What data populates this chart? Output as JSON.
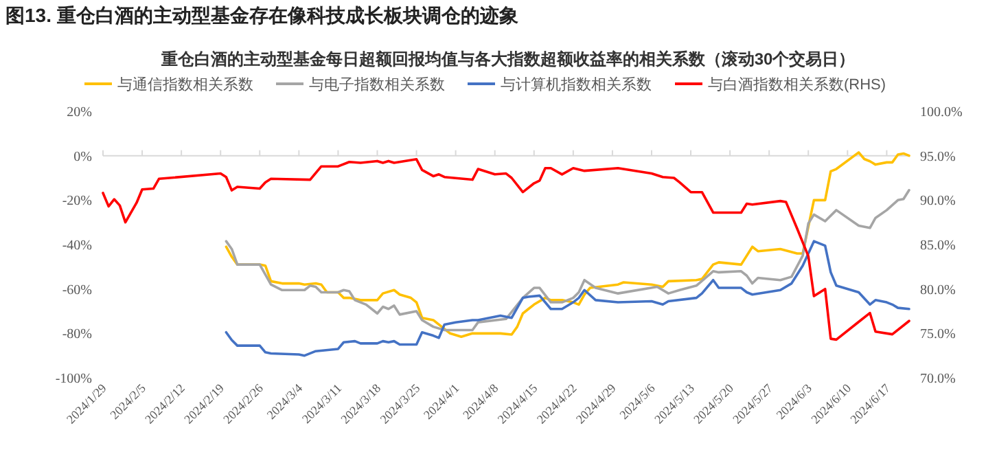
{
  "chart_data": {
    "type": "line",
    "title": "图13. 重仓白酒的主动型基金存在像科技成长板块调仓的迹象",
    "subtitle": "重仓白酒的主动型基金每日超额回报均值与各大指数超额收益率的相关系数（滚动30个交易日）",
    "xlim": [
      "2024-01-29",
      "2024-06-21"
    ],
    "xticks": [
      {
        "value": "2024-01-29",
        "label": "2024/1/29"
      },
      {
        "value": "2024-02-05",
        "label": "2024/2/5"
      },
      {
        "value": "2024-02-12",
        "label": "2024/2/12"
      },
      {
        "value": "2024-02-19",
        "label": "2024/2/19"
      },
      {
        "value": "2024-02-26",
        "label": "2024/2/26"
      },
      {
        "value": "2024-03-04",
        "label": "2024/3/4"
      },
      {
        "value": "2024-03-11",
        "label": "2024/3/11"
      },
      {
        "value": "2024-03-18",
        "label": "2024/3/18"
      },
      {
        "value": "2024-03-25",
        "label": "2024/3/25"
      },
      {
        "value": "2024-04-01",
        "label": "2024/4/1"
      },
      {
        "value": "2024-04-08",
        "label": "2024/4/8"
      },
      {
        "value": "2024-04-15",
        "label": "2024/4/15"
      },
      {
        "value": "2024-04-22",
        "label": "2024/4/22"
      },
      {
        "value": "2024-04-29",
        "label": "2024/4/29"
      },
      {
        "value": "2024-05-06",
        "label": "2024/5/6"
      },
      {
        "value": "2024-05-13",
        "label": "2024/5/13"
      },
      {
        "value": "2024-05-20",
        "label": "2024/5/20"
      },
      {
        "value": "2024-05-27",
        "label": "2024/5/27"
      },
      {
        "value": "2024-06-03",
        "label": "2024/6/3"
      },
      {
        "value": "2024-06-10",
        "label": "2024/6/10"
      },
      {
        "value": "2024-06-17",
        "label": "2024/6/17"
      }
    ],
    "ylim": [
      -100,
      20
    ],
    "yticks": [
      {
        "value": -100,
        "label": "-100%"
      },
      {
        "value": -80,
        "label": "-80%"
      },
      {
        "value": -60,
        "label": "-60%"
      },
      {
        "value": -40,
        "label": "-40%"
      },
      {
        "value": -20,
        "label": "-20%"
      },
      {
        "value": 0,
        "label": "0%"
      },
      {
        "value": 20,
        "label": "20%"
      }
    ],
    "y2lim": [
      70,
      100
    ],
    "y2ticks": [
      {
        "value": 70,
        "label": "70.0%"
      },
      {
        "value": 75,
        "label": "75.0%"
      },
      {
        "value": 80,
        "label": "80.0%"
      },
      {
        "value": 85,
        "label": "85.0%"
      },
      {
        "value": 90,
        "label": "90.0%"
      },
      {
        "value": 95,
        "label": "95.0%"
      },
      {
        "value": 100,
        "label": "100.0%"
      }
    ],
    "legend": "top",
    "ref_lines": [
      {
        "axis": "y",
        "value": 0,
        "color": "#d9d9d9"
      }
    ],
    "series": [
      {
        "name": "与通信指数相关系数",
        "color": "#ffc000",
        "x": [
          "2024-02-20",
          "2024-02-21",
          "2024-02-22",
          "2024-02-26",
          "2024-02-27",
          "2024-02-28",
          "2024-03-01",
          "2024-03-04",
          "2024-03-05",
          "2024-03-07",
          "2024-03-08",
          "2024-03-09",
          "2024-03-11",
          "2024-03-12",
          "2024-03-13",
          "2024-03-15",
          "2024-03-18",
          "2024-03-19",
          "2024-03-21",
          "2024-03-22",
          "2024-03-24",
          "2024-03-25",
          "2024-03-26",
          "2024-03-28",
          "2024-03-30",
          "2024-03-31",
          "2024-04-02",
          "2024-04-04",
          "2024-04-05",
          "2024-04-09",
          "2024-04-11",
          "2024-04-12",
          "2024-04-13",
          "2024-04-14",
          "2024-04-15",
          "2024-04-17",
          "2024-04-18",
          "2024-04-20",
          "2024-04-22",
          "2024-04-23",
          "2024-04-24",
          "2024-04-25",
          "2024-04-30",
          "2024-05-01",
          "2024-05-06",
          "2024-05-08",
          "2024-05-09",
          "2024-05-14",
          "2024-05-15",
          "2024-05-17",
          "2024-05-18",
          "2024-05-22",
          "2024-05-24",
          "2024-05-25",
          "2024-05-29",
          "2024-06-01",
          "2024-06-02",
          "2024-06-04",
          "2024-06-06",
          "2024-06-07",
          "2024-06-08",
          "2024-06-12",
          "2024-06-13",
          "2024-06-14",
          "2024-06-15",
          "2024-06-17",
          "2024-06-18",
          "2024-06-19",
          "2024-06-20",
          "2024-06-21"
        ],
        "values": [
          -41,
          -45.5,
          -49,
          -49,
          -49.5,
          -56.5,
          -57.5,
          -57.5,
          -58,
          -57.5,
          -58,
          -61.5,
          -61.5,
          -64,
          -64,
          -65,
          -65,
          -62,
          -60.5,
          -62.5,
          -64,
          -66,
          -73,
          -74,
          -78,
          -80,
          -81.5,
          -80,
          -80,
          -80,
          -80.5,
          -77,
          -71,
          -69,
          -67,
          -64,
          -65,
          -65,
          -66,
          -67,
          -62.5,
          -59.5,
          -58,
          -57,
          -58,
          -59,
          -56.5,
          -56,
          -55.5,
          -49,
          -48,
          -49,
          -41,
          -43,
          -42,
          -44,
          -44,
          -20,
          -20,
          -7,
          -6,
          1.5,
          -1.5,
          -2.5,
          -4,
          -3,
          -3,
          0.5,
          1,
          0
        ],
        "axis": "y"
      },
      {
        "name": "与电子指数相关系数",
        "color": "#a5a5a5",
        "x": [
          "2024-02-20",
          "2024-02-21",
          "2024-02-22",
          "2024-02-26",
          "2024-02-27",
          "2024-02-28",
          "2024-03-01",
          "2024-03-05",
          "2024-03-06",
          "2024-03-07",
          "2024-03-08",
          "2024-03-11",
          "2024-03-12",
          "2024-03-13",
          "2024-03-14",
          "2024-03-16",
          "2024-03-18",
          "2024-03-19",
          "2024-03-20",
          "2024-03-21",
          "2024-03-22",
          "2024-03-25",
          "2024-03-26",
          "2024-03-28",
          "2024-03-30",
          "2024-04-04",
          "2024-04-05",
          "2024-04-10",
          "2024-04-13",
          "2024-04-15",
          "2024-04-16",
          "2024-04-18",
          "2024-04-20",
          "2024-04-22",
          "2024-04-23",
          "2024-04-24",
          "2024-04-26",
          "2024-04-30",
          "2024-05-07",
          "2024-05-09",
          "2024-05-11",
          "2024-05-14",
          "2024-05-17",
          "2024-05-18",
          "2024-05-22",
          "2024-05-23",
          "2024-05-24",
          "2024-05-25",
          "2024-05-29",
          "2024-05-31",
          "2024-06-02",
          "2024-06-03",
          "2024-06-04",
          "2024-06-06",
          "2024-06-08",
          "2024-06-12",
          "2024-06-14",
          "2024-06-15",
          "2024-06-17",
          "2024-06-19",
          "2024-06-20",
          "2024-06-21"
        ],
        "values": [
          -38.5,
          -42,
          -49,
          -49,
          -53.5,
          -58,
          -60.5,
          -60.5,
          -58.5,
          -59,
          -61.5,
          -61.5,
          -60.5,
          -61,
          -65,
          -67,
          -71,
          -68,
          -69,
          -67.5,
          -71.5,
          -70,
          -74,
          -77,
          -78.5,
          -78.5,
          -75,
          -73.5,
          -64,
          -59.5,
          -59.5,
          -66,
          -66,
          -64,
          -61.5,
          -56,
          -59.5,
          -62,
          -59,
          -62,
          -60.5,
          -58.5,
          -52,
          -52.5,
          -52,
          -54,
          -57.5,
          -55,
          -56,
          -54.5,
          -45,
          -30.5,
          -26.5,
          -29.5,
          -24.5,
          -31.5,
          -32.5,
          -28,
          -24.5,
          -20,
          -19.5,
          -15.5
        ],
        "axis": "y"
      },
      {
        "name": "与计算机指数相关系数",
        "color": "#4472c4",
        "x": [
          "2024-02-20",
          "2024-02-21",
          "2024-02-22",
          "2024-02-26",
          "2024-02-27",
          "2024-02-28",
          "2024-03-04",
          "2024-03-05",
          "2024-03-07",
          "2024-03-11",
          "2024-03-12",
          "2024-03-14",
          "2024-03-15",
          "2024-03-18",
          "2024-03-19",
          "2024-03-20",
          "2024-03-21",
          "2024-03-22",
          "2024-03-25",
          "2024-03-26",
          "2024-03-28",
          "2024-03-29",
          "2024-03-30",
          "2024-04-01",
          "2024-04-04",
          "2024-04-05",
          "2024-04-09",
          "2024-04-11",
          "2024-04-13",
          "2024-04-14",
          "2024-04-16",
          "2024-04-18",
          "2024-04-20",
          "2024-04-22",
          "2024-04-23",
          "2024-04-24",
          "2024-04-26",
          "2024-04-30",
          "2024-05-06",
          "2024-05-08",
          "2024-05-09",
          "2024-05-14",
          "2024-05-15",
          "2024-05-17",
          "2024-05-18",
          "2024-05-22",
          "2024-05-23",
          "2024-05-24",
          "2024-05-29",
          "2024-05-31",
          "2024-06-02",
          "2024-06-04",
          "2024-06-06",
          "2024-06-07",
          "2024-06-08",
          "2024-06-12",
          "2024-06-14",
          "2024-06-15",
          "2024-06-17",
          "2024-06-18",
          "2024-06-19",
          "2024-06-21"
        ],
        "values": [
          -79.5,
          -83,
          -85.5,
          -85.5,
          -88.5,
          -89,
          -89.5,
          -90,
          -88,
          -87,
          -84,
          -83.5,
          -84.5,
          -84.5,
          -83.5,
          -84,
          -83.5,
          -85,
          -85,
          -79.5,
          -81,
          -82,
          -76,
          -75,
          -74,
          -74,
          -72,
          -73,
          -64,
          -63.5,
          -63,
          -69,
          -69,
          -66,
          -64,
          -60.5,
          -65,
          -66,
          -65.5,
          -67,
          -65.5,
          -64,
          -62,
          -56,
          -59.5,
          -59.5,
          -61.5,
          -62.5,
          -60.5,
          -57.5,
          -49.5,
          -38.5,
          -40.5,
          -52.5,
          -58.5,
          -61.5,
          -67,
          -65,
          -66,
          -67,
          -68.5,
          -69
        ],
        "axis": "y"
      },
      {
        "name": "与白酒指数相关系数(RHS)",
        "color": "#ff0000",
        "x": [
          "2024-01-29",
          "2024-01-30",
          "2024-01-31",
          "2024-02-01",
          "2024-02-02",
          "2024-02-04",
          "2024-02-05",
          "2024-02-07",
          "2024-02-08",
          "2024-02-19",
          "2024-02-20",
          "2024-02-21",
          "2024-02-22",
          "2024-02-26",
          "2024-02-27",
          "2024-02-28",
          "2024-03-06",
          "2024-03-08",
          "2024-03-11",
          "2024-03-13",
          "2024-03-15",
          "2024-03-18",
          "2024-03-19",
          "2024-03-20",
          "2024-03-21",
          "2024-03-25",
          "2024-03-26",
          "2024-03-28",
          "2024-03-29",
          "2024-03-30",
          "2024-04-04",
          "2024-04-05",
          "2024-04-08",
          "2024-04-10",
          "2024-04-11",
          "2024-04-13",
          "2024-04-15",
          "2024-04-16",
          "2024-04-17",
          "2024-04-18",
          "2024-04-20",
          "2024-04-22",
          "2024-04-24",
          "2024-04-30",
          "2024-05-06",
          "2024-05-08",
          "2024-05-10",
          "2024-05-11",
          "2024-05-13",
          "2024-05-15",
          "2024-05-17",
          "2024-05-22",
          "2024-05-23",
          "2024-05-24",
          "2024-05-29",
          "2024-05-30",
          "2024-06-01",
          "2024-06-03",
          "2024-06-04",
          "2024-06-06",
          "2024-06-07",
          "2024-06-08",
          "2024-06-12",
          "2024-06-14",
          "2024-06-15",
          "2024-06-18",
          "2024-06-21"
        ],
        "values": [
          90.8,
          89.3,
          90.1,
          89.4,
          87.5,
          89.7,
          91.2,
          91.3,
          92.4,
          93,
          92.6,
          91.1,
          91.5,
          91.3,
          92,
          92.4,
          92.3,
          93.8,
          93.8,
          94.3,
          94.2,
          94.4,
          94.2,
          94.4,
          94.2,
          94.6,
          93.4,
          92.7,
          92.9,
          92.6,
          92.3,
          93.5,
          92.9,
          93,
          92.5,
          90.9,
          91.9,
          92.2,
          93.6,
          93.6,
          92.9,
          93.6,
          93.3,
          93.6,
          93,
          92.6,
          92.5,
          92,
          90.9,
          90.9,
          88.6,
          88.6,
          89.6,
          89.5,
          89.9,
          89.8,
          86.8,
          83.7,
          79.2,
          80,
          74.4,
          74.3,
          76.3,
          77.3,
          75.2,
          74.9,
          76.4
        ],
        "axis": "y2"
      }
    ]
  }
}
